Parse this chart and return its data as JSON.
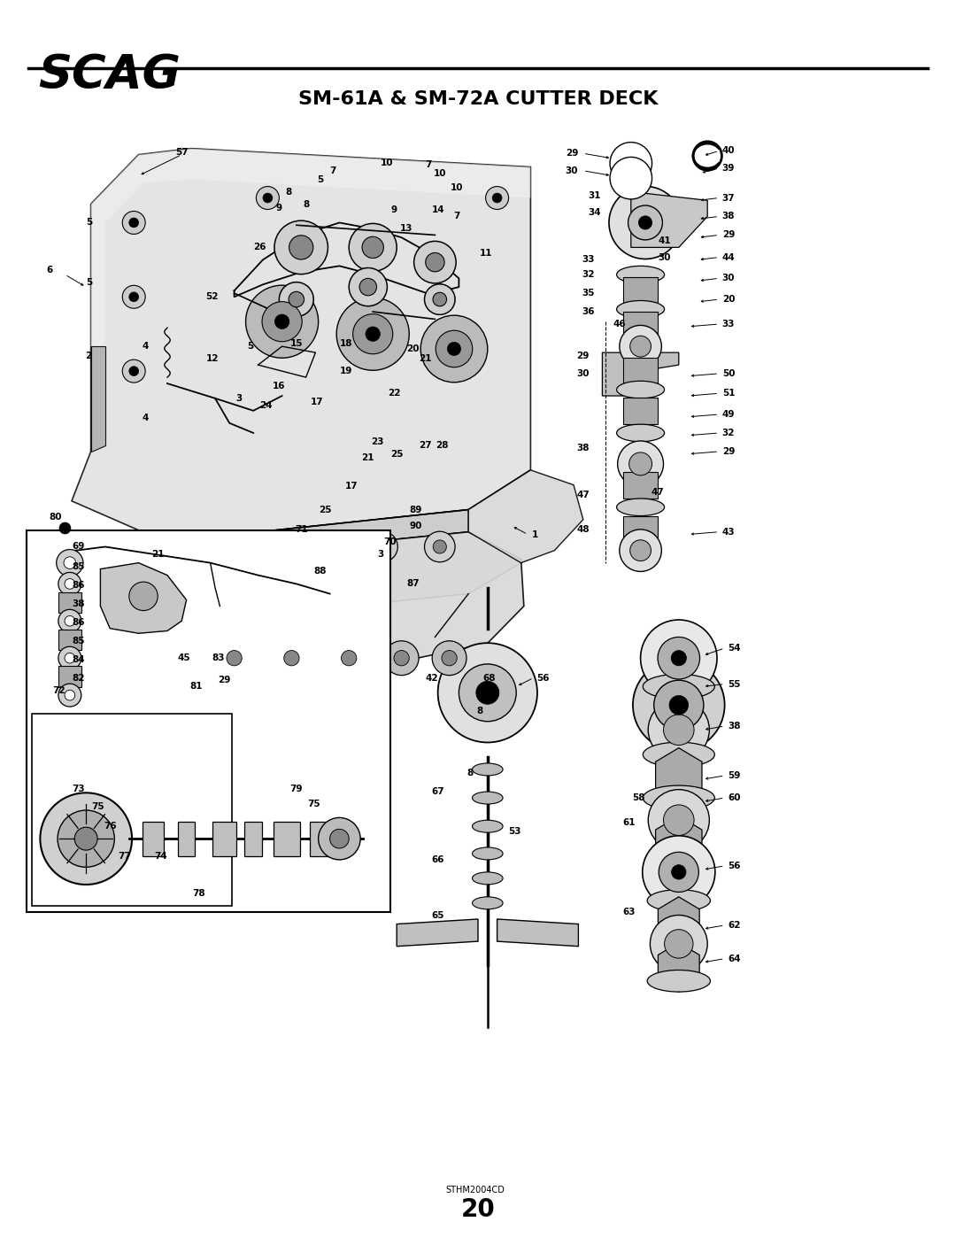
{
  "title": "SM-61A & SM-72A CUTTER DECK",
  "brand": "SCAG",
  "page_number": "20",
  "watermark": "STHM2004CD",
  "bg": "#ffffff",
  "black": "#000000",
  "gray": "#888888",
  "lightgray": "#cccccc",
  "fig_width": 10.8,
  "fig_height": 13.97,
  "dpi": 100
}
